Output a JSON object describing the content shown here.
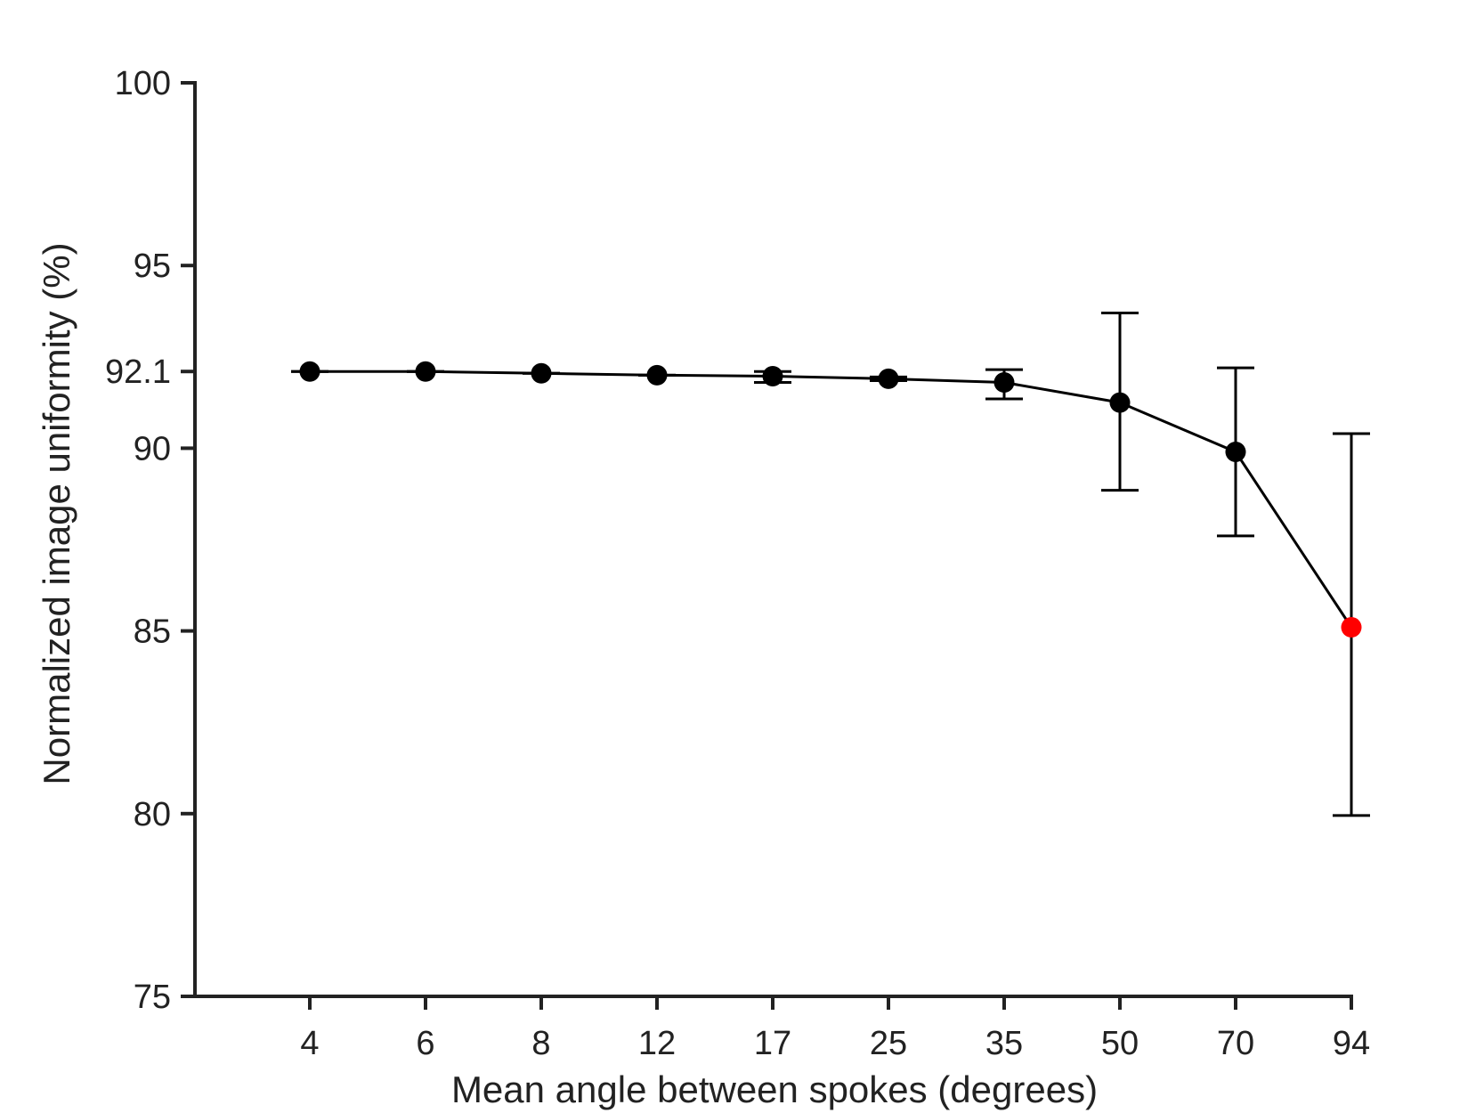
{
  "chart_data": {
    "type": "line",
    "xlabel": "Mean angle between spokes (degrees)",
    "ylabel": "Normalized image uniformity (%)",
    "categories": [
      "4",
      "6",
      "8",
      "12",
      "17",
      "25",
      "35",
      "50",
      "70",
      "94"
    ],
    "ylim": [
      75,
      100
    ],
    "yticks": [
      "75",
      "80",
      "85",
      "90",
      "92.1",
      "95",
      "100"
    ],
    "grid": false,
    "legend": "none",
    "series": [
      {
        "values": [
          92.1,
          92.1,
          92.05,
          92.0,
          91.97,
          91.9,
          91.8,
          91.25,
          89.9,
          85.1
        ],
        "err_low": [
          92.1,
          92.1,
          92.05,
          92.0,
          91.8,
          91.85,
          91.35,
          88.85,
          87.6,
          79.95
        ],
        "err_high": [
          92.1,
          92.1,
          92.05,
          92.0,
          92.1,
          91.95,
          92.15,
          93.7,
          92.2,
          90.4
        ],
        "color": "#000000",
        "highlight_index": 9,
        "highlight_color": "#ff0000"
      }
    ]
  }
}
